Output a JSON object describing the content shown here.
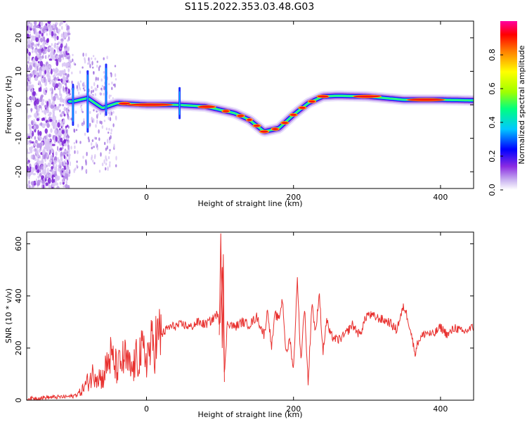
{
  "figure": {
    "title": "S115.2022.353.03.48.G03"
  },
  "chart_data": [
    {
      "type": "heatmap",
      "xlabel": "Height of straight line (km)",
      "ylabel": "Frequency (Hz)",
      "xlim": [
        -163,
        445
      ],
      "ylim": [
        -25,
        25
      ],
      "xticks": [
        0,
        200,
        400
      ],
      "yticks": [
        -20,
        -10,
        0,
        10,
        20
      ],
      "colorbar": {
        "label": "Normalized spectral amplitude",
        "range": [
          0,
          1
        ],
        "ticks": [
          "0.0",
          "0.2",
          "0.4",
          "0.6",
          "0.8"
        ],
        "tick_values": [
          0.0,
          0.2,
          0.4,
          0.6,
          0.8
        ],
        "colormap": [
          "#ffffff",
          "#c8b0f0",
          "#8a2be2",
          "#0000ff",
          "#00c8ff",
          "#00ff80",
          "#a0ff00",
          "#ffff00",
          "#ff8000",
          "#ff0000",
          "#ff00a0"
        ]
      },
      "ridge": {
        "x": [
          -100,
          -80,
          -60,
          -40,
          0,
          40,
          80,
          100,
          120,
          140,
          160,
          180,
          200,
          220,
          240,
          260,
          300,
          350,
          400,
          445
        ],
        "y": [
          1,
          2,
          -1,
          0.5,
          0,
          0,
          -0.5,
          -1.5,
          -2.5,
          -4.5,
          -8,
          -7,
          -3,
          0.5,
          2.5,
          2.7,
          2.5,
          1.5,
          1.5,
          1.3
        ]
      },
      "noise_region": {
        "x_range": [
          -163,
          -105
        ],
        "y_range": [
          -25,
          25
        ]
      }
    },
    {
      "type": "line",
      "xlabel": "Height of straight line (km)",
      "ylabel": "SNR (10 * v/v)",
      "xlim": [
        -163,
        445
      ],
      "ylim": [
        0,
        645
      ],
      "xticks": [
        0,
        200,
        400
      ],
      "yticks": [
        0,
        200,
        400,
        600
      ],
      "color": "#e8302e",
      "series": [
        {
          "x": [
            -163,
            -140,
            -120,
            -100,
            -90,
            -80,
            -70,
            -60,
            -50,
            -40,
            -30,
            -20,
            -10,
            0,
            10,
            20,
            30,
            40,
            50,
            60,
            70,
            80,
            90,
            95,
            100,
            103,
            106,
            110,
            120,
            130,
            140,
            150,
            160,
            165,
            170,
            175,
            180,
            185,
            190,
            195,
            200,
            205,
            210,
            215,
            220,
            225,
            230,
            235,
            240,
            245,
            250,
            260,
            270,
            280,
            290,
            300,
            310,
            320,
            330,
            340,
            350,
            355,
            360,
            365,
            370,
            380,
            390,
            400,
            410,
            420,
            430,
            445
          ],
          "y": [
            5,
            10,
            12,
            15,
            30,
            70,
            110,
            80,
            170,
            120,
            160,
            110,
            180,
            170,
            220,
            250,
            280,
            285,
            290,
            280,
            300,
            290,
            310,
            330,
            300,
            520,
            80,
            300,
            280,
            300,
            290,
            320,
            250,
            350,
            200,
            330,
            310,
            390,
            170,
            240,
            110,
            470,
            150,
            360,
            60,
            380,
            250,
            420,
            180,
            310,
            250,
            230,
            250,
            290,
            250,
            330,
            320,
            310,
            300,
            270,
            360,
            320,
            260,
            180,
            230,
            260,
            250,
            280,
            250,
            280,
            260,
            280
          ]
        }
      ]
    }
  ]
}
